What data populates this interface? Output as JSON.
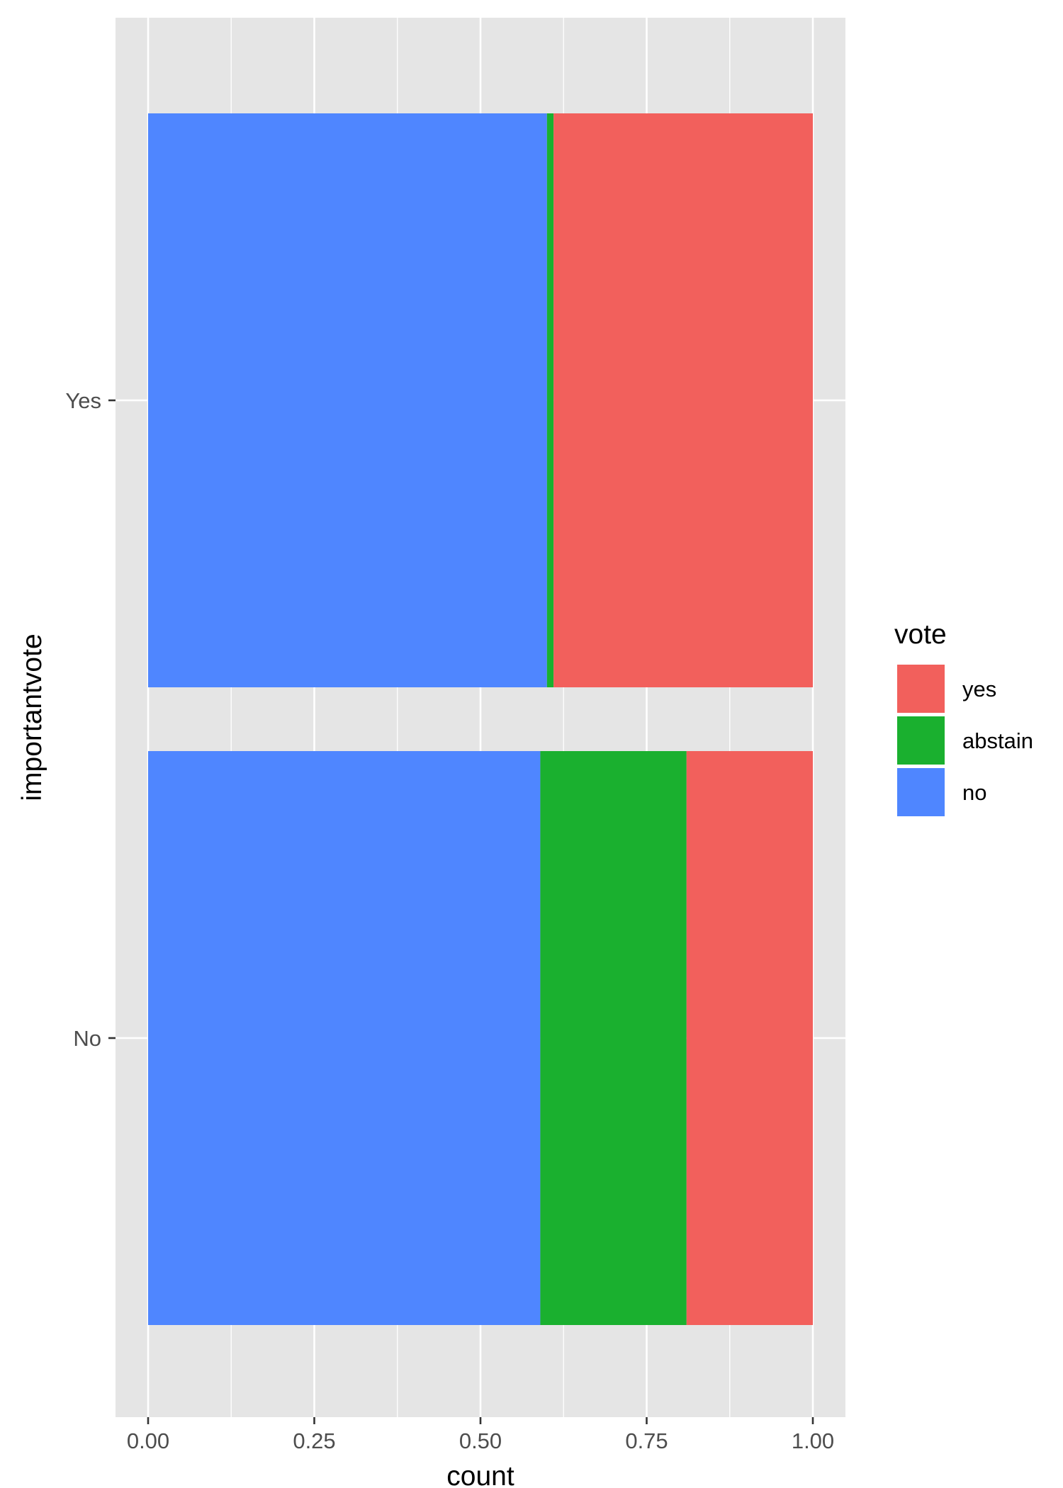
{
  "chart_data": {
    "type": "bar",
    "orientation": "horizontal",
    "stacked": true,
    "position": "fill",
    "title": "",
    "xlabel": "count",
    "ylabel": "importantvote",
    "xlim": [
      0,
      1
    ],
    "x_ticks": [
      "0.00",
      "0.25",
      "0.50",
      "0.75",
      "1.00"
    ],
    "x_tick_values": [
      0,
      0.25,
      0.5,
      0.75,
      1
    ],
    "categories": [
      "Yes",
      "No"
    ],
    "series": [
      {
        "name": "no",
        "color": "#4f86ff",
        "values": [
          0.6,
          0.59
        ]
      },
      {
        "name": "abstain",
        "color": "#1ab02f",
        "values": [
          0.01,
          0.22
        ]
      },
      {
        "name": "yes",
        "color": "#f2605c",
        "values": [
          0.39,
          0.19
        ]
      }
    ],
    "stack_order": [
      "no",
      "abstain",
      "yes"
    ],
    "legend": {
      "title": "vote",
      "position": "right",
      "entries": [
        "yes",
        "abstain",
        "no"
      ]
    },
    "grid": true,
    "background": "#e5e5e5",
    "gridline_color": "#ffffff"
  }
}
